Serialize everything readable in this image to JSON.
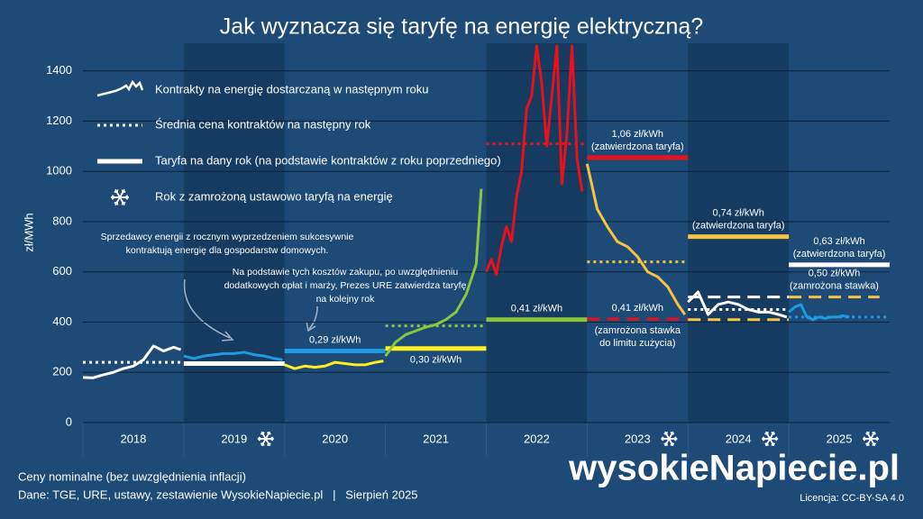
{
  "chart_data": {
    "type": "line",
    "title": "Jak wyznacza się taryfę na energię elektryczną?",
    "y_label": "zł/MWh",
    "ylim": [
      0,
      1510
    ],
    "yticks": [
      0,
      200,
      400,
      600,
      800,
      1000,
      1200,
      1400
    ],
    "xlim": [
      2018,
      2026
    ],
    "categories": [
      "2018",
      "2019",
      "2020",
      "2021",
      "2022",
      "2023",
      "2024",
      "2025"
    ],
    "frozen": [
      false,
      true,
      false,
      false,
      false,
      true,
      true,
      true
    ],
    "shaded": [
      false,
      true,
      false,
      false,
      true,
      false,
      true,
      false
    ],
    "grid": true,
    "legend": [
      {
        "style": "contract",
        "text": "Kontrakty na energię dostarczaną w następnym roku"
      },
      {
        "style": "dotted",
        "text": "Średnia cena kontraktów na następny rok"
      },
      {
        "style": "solid",
        "text": "Taryfa na dany rok (na podstawie kontraktów z roku poprzedniego)"
      },
      {
        "style": "snowflake",
        "text": "Rok z zamrożoną ustawowo taryfą na energię"
      }
    ],
    "series": [
      {
        "color": "#ffffff",
        "x": [
          2018.0,
          2018.1,
          2018.2,
          2018.3,
          2018.4,
          2018.5,
          2018.6,
          2018.7,
          2018.8,
          2018.9,
          2018.97
        ],
        "values": [
          180,
          178,
          190,
          200,
          215,
          225,
          250,
          305,
          285,
          300,
          290
        ]
      },
      {
        "color": "#1e9be0",
        "x": [
          2019.0,
          2019.1,
          2019.2,
          2019.3,
          2019.4,
          2019.5,
          2019.6,
          2019.7,
          2019.8,
          2019.9,
          2019.98
        ],
        "values": [
          265,
          255,
          265,
          270,
          275,
          275,
          280,
          270,
          265,
          255,
          250
        ]
      },
      {
        "color": "#ffee22",
        "x": [
          2020.0,
          2020.1,
          2020.2,
          2020.3,
          2020.4,
          2020.5,
          2020.6,
          2020.7,
          2020.8,
          2020.9,
          2020.98
        ],
        "values": [
          230,
          215,
          225,
          220,
          225,
          240,
          235,
          230,
          230,
          240,
          245
        ]
      },
      {
        "color": "#8cc63f",
        "x": [
          2021.0,
          2021.1,
          2021.2,
          2021.3,
          2021.4,
          2021.5,
          2021.6,
          2021.7,
          2021.8,
          2021.9,
          2021.95
        ],
        "values": [
          265,
          320,
          350,
          365,
          380,
          390,
          410,
          440,
          510,
          630,
          930
        ]
      },
      {
        "color": "#e8101a",
        "x": [
          2022.0,
          2022.05,
          2022.1,
          2022.15,
          2022.2,
          2022.25,
          2022.3,
          2022.35,
          2022.4,
          2022.45,
          2022.5,
          2022.55,
          2022.6,
          2022.65,
          2022.7,
          2022.75,
          2022.8,
          2022.85,
          2022.9,
          2022.95
        ],
        "values": [
          600,
          650,
          590,
          700,
          780,
          720,
          900,
          1000,
          1250,
          1300,
          1500,
          1350,
          1100,
          1300,
          1500,
          950,
          1150,
          1500,
          1050,
          920
        ]
      },
      {
        "color": "#f5c242",
        "x": [
          2023.0,
          2023.1,
          2023.2,
          2023.3,
          2023.4,
          2023.5,
          2023.6,
          2023.7,
          2023.8,
          2023.9,
          2023.97
        ],
        "values": [
          1030,
          850,
          780,
          720,
          700,
          660,
          600,
          580,
          540,
          470,
          430
        ]
      },
      {
        "color": "#ffffff",
        "x": [
          2024.0,
          2024.1,
          2024.2,
          2024.3,
          2024.4,
          2024.5,
          2024.6,
          2024.7,
          2024.8,
          2024.9,
          2024.98
        ],
        "values": [
          480,
          520,
          430,
          470,
          480,
          470,
          450,
          440,
          440,
          430,
          420
        ]
      },
      {
        "color": "#1e9be0",
        "x": [
          2025.0,
          2025.06,
          2025.12,
          2025.18,
          2025.24,
          2025.3,
          2025.36,
          2025.42,
          2025.48,
          2025.54,
          2025.6
        ],
        "values": [
          440,
          460,
          470,
          420,
          410,
          420,
          415,
          420,
          420,
          425,
          420
        ]
      }
    ],
    "levels": [
      {
        "color": "#ffffff",
        "style": "dotted",
        "x": [
          2018.0,
          2019.0
        ],
        "value": 240
      },
      {
        "color": "#ffffff",
        "style": "solid",
        "x": [
          2019.0,
          2020.0
        ],
        "value": 235
      },
      {
        "color": "#1e9be0",
        "style": "solid",
        "x": [
          2020.0,
          2021.0
        ],
        "value": 285,
        "label_above": [
          "0,29 zł/kWh"
        ]
      },
      {
        "color": "#8cc63f",
        "style": "dotted",
        "x": [
          2021.0,
          2022.0
        ],
        "value": 385
      },
      {
        "color": "#ffee22",
        "style": "solid",
        "x": [
          2021.0,
          2022.0
        ],
        "value": 295,
        "label_below": [
          "0,30 zł/kWh"
        ]
      },
      {
        "color": "#e8101a",
        "style": "dotted",
        "x": [
          2022.0,
          2023.0
        ],
        "value": 1110
      },
      {
        "color": "#8cc63f",
        "style": "solid",
        "x": [
          2022.0,
          2023.0
        ],
        "value": 410,
        "label_above": [
          "0,41 zł/kWh"
        ]
      },
      {
        "color": "#f5c242",
        "style": "dotted",
        "x": [
          2023.0,
          2024.0
        ],
        "value": 640
      },
      {
        "color": "#e8101a",
        "style": "solid",
        "x": [
          2023.0,
          2024.0
        ],
        "value": 1055,
        "label_above": [
          "1,06 zł/kWh",
          "(zatwierdzona taryfa)"
        ]
      },
      {
        "color": "#e8101a",
        "style": "dashed",
        "x": [
          2023.0,
          2024.0
        ],
        "value": 412,
        "label_above": [
          "0,41 zł/kWh"
        ],
        "label_below": [
          "(zamrożona stawka",
          "do limitu zużycia)"
        ]
      },
      {
        "color": "#f5c242",
        "style": "dashed",
        "x": [
          2024.0,
          2025.0
        ],
        "value": 410
      },
      {
        "color": "#ffffff",
        "style": "dotted",
        "x": [
          2024.0,
          2025.0
        ],
        "value": 450
      },
      {
        "color": "#f5c242",
        "style": "solid",
        "x": [
          2024.0,
          2025.0
        ],
        "value": 740,
        "label_above": [
          "0,74 zł/kWh",
          "(zatwierdzona taryfa)"
        ]
      },
      {
        "color": "#ffffff",
        "style": "dashed",
        "x": [
          2024.0,
          2025.0
        ],
        "value": 500
      },
      {
        "color": "#f5c242",
        "style": "dashed",
        "x": [
          2025.0,
          2025.9
        ],
        "value": 500,
        "label_above": [
          "0,50 zł/kWh",
          "(zamrożona stawka)"
        ]
      },
      {
        "color": "#ffffff",
        "style": "solid",
        "x": [
          2025.0,
          2026.0
        ],
        "value": 628,
        "label_above": [
          "0,63 zł/kWh",
          "(zatwierdzona taryfa)"
        ]
      },
      {
        "color": "#1e9be0",
        "style": "dotted",
        "x": [
          2025.0,
          2026.0
        ],
        "value": 420
      }
    ],
    "annotations": [
      {
        "lines": [
          "Sprzedawcy energii z rocznym wyprzedzeniem sukcesywnie",
          "kontraktują energię dla gospodarstw domowych."
        ]
      },
      {
        "lines": [
          "Na podstawie tych kosztów zakupu, po uwzględnieniu",
          "dodatkowych opłat i marży, Prezes URE zatwierdza taryfę",
          "na kolejny rok"
        ]
      }
    ]
  },
  "footer": {
    "note": "Ceny nominalne (bez uwzględnienia inflacji)",
    "source": "Dane: TGE, URE, ustawy, zestawienie WysokieNapiecie.pl   |   Sierpień 2025",
    "logo": "wysokieNapiecie.pl",
    "license": "Licencja: CC-BY-SA 4.0"
  }
}
